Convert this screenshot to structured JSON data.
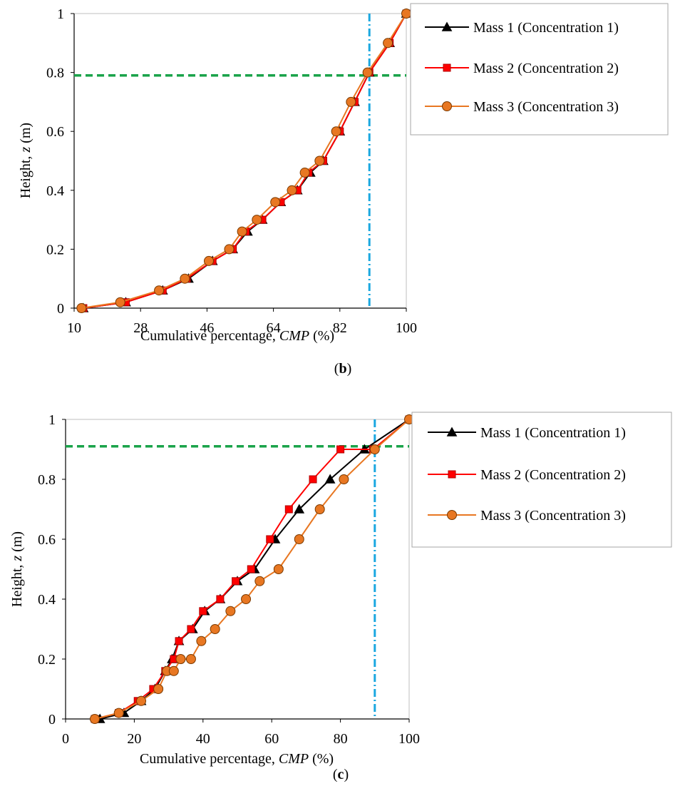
{
  "colors": {
    "series": [
      "#000000",
      "#ff0000",
      "#e87722"
    ],
    "marker_edges": [
      "#000000",
      "#b00000",
      "#7a3a00"
    ],
    "threshold_horizontal": "#1aa34a",
    "threshold_vertical": "#1aa7e0",
    "axis": "#000000",
    "plot_border": "#bfbfbf",
    "legend_border": "#a6a6a6"
  },
  "chart_data": [
    {
      "type": "line",
      "panel_label": "b",
      "xlabel_prefix": "Cumulative percentage, ",
      "xlabel_italic": "CMP",
      "xlabel_suffix": " (%)",
      "ylabel_prefix": "Height, ",
      "ylabel_italic": "z",
      "ylabel_suffix": " (m)",
      "xlim": [
        10,
        100
      ],
      "ylim": [
        0,
        1
      ],
      "x_ticks": [
        10,
        28,
        46,
        64,
        82,
        100
      ],
      "y_ticks": [
        0,
        0.2,
        0.4,
        0.6,
        0.8,
        1
      ],
      "x_tick_labels": [
        "10",
        "28",
        "46",
        "64",
        "82",
        "100"
      ],
      "y_tick_labels": [
        "0",
        "0.2",
        "0.4",
        "0.6",
        "0.8",
        "1"
      ],
      "grid": false,
      "legend_position": "top-right-outside",
      "threshold_y": 0.79,
      "threshold_x": 90,
      "series": [
        {
          "name": "Mass 1 (Concentration 1)",
          "marker": "triangle",
          "x": [
            12.5,
            24,
            34,
            41,
            47.5,
            53,
            57,
            61,
            66,
            70.5,
            74,
            77.5,
            82,
            86,
            90,
            95.5,
            100
          ],
          "y": [
            0,
            0.02,
            0.06,
            0.1,
            0.16,
            0.2,
            0.26,
            0.3,
            0.36,
            0.4,
            0.46,
            0.5,
            0.6,
            0.7,
            0.8,
            0.9,
            1
          ]
        },
        {
          "name": "Mass 2 (Concentration 2)",
          "marker": "square",
          "x": [
            12.5,
            24,
            34,
            40.5,
            47.5,
            53,
            56.5,
            61,
            66,
            70.5,
            73.5,
            77.5,
            82,
            86,
            90,
            95.5,
            100
          ],
          "y": [
            0,
            0.02,
            0.06,
            0.1,
            0.16,
            0.2,
            0.26,
            0.3,
            0.36,
            0.4,
            0.46,
            0.5,
            0.6,
            0.7,
            0.8,
            0.9,
            1
          ]
        },
        {
          "name": "Mass 3 (Concentration 3)",
          "marker": "circle",
          "x": [
            12,
            22.5,
            33,
            40,
            46.5,
            52,
            55.5,
            59.5,
            64.5,
            69,
            72.5,
            76.5,
            81,
            85,
            89.5,
            95,
            100
          ],
          "y": [
            0,
            0.02,
            0.06,
            0.1,
            0.16,
            0.2,
            0.26,
            0.3,
            0.36,
            0.4,
            0.46,
            0.5,
            0.6,
            0.7,
            0.8,
            0.9,
            1
          ]
        }
      ]
    },
    {
      "type": "line",
      "panel_label": "c",
      "xlabel_prefix": "Cumulative percentage, ",
      "xlabel_italic": "CMP",
      "xlabel_suffix": " (%)",
      "ylabel_prefix": "Height, ",
      "ylabel_italic": "z",
      "ylabel_suffix": " (m)",
      "xlim": [
        0,
        100
      ],
      "ylim": [
        0,
        1
      ],
      "x_ticks": [
        0,
        20,
        40,
        60,
        80,
        100
      ],
      "y_ticks": [
        0,
        0.2,
        0.4,
        0.6,
        0.8,
        1
      ],
      "x_tick_labels": [
        "0",
        "20",
        "40",
        "60",
        "80",
        "100"
      ],
      "y_tick_labels": [
        "0",
        "0.2",
        "0.4",
        "0.6",
        "0.8",
        "1"
      ],
      "grid": false,
      "legend_position": "top-right-outside",
      "threshold_y": 0.91,
      "threshold_x": 90,
      "series": [
        {
          "name": "Mass 1 (Concentration 1)",
          "marker": "triangle",
          "x": [
            10,
            17,
            22,
            26,
            29,
            31,
            33,
            37,
            40.5,
            45,
            50,
            55,
            61,
            68,
            77,
            87,
            100
          ],
          "y": [
            0,
            0.02,
            0.06,
            0.1,
            0.16,
            0.2,
            0.26,
            0.3,
            0.36,
            0.4,
            0.46,
            0.5,
            0.6,
            0.7,
            0.8,
            0.9,
            1
          ]
        },
        {
          "name": "Mass 2 (Concentration 2)",
          "marker": "square",
          "x": [
            8.5,
            15.5,
            21,
            25.5,
            29,
            31.5,
            33,
            36.5,
            40,
            45,
            49.5,
            54,
            59.5,
            65,
            72,
            80,
            89.5,
            100
          ],
          "y": [
            0,
            0.02,
            0.06,
            0.1,
            0.16,
            0.2,
            0.26,
            0.3,
            0.36,
            0.4,
            0.46,
            0.5,
            0.6,
            0.7,
            0.8,
            0.9,
            0.9,
            1
          ]
        },
        {
          "name": "Mass 3 (Concentration 3)",
          "marker": "circle",
          "x": [
            8.5,
            15.5,
            22,
            27,
            29.5,
            31.5,
            33.5,
            36.5,
            39.5,
            43.5,
            48,
            52.5,
            56.5,
            62,
            68,
            74,
            81,
            90,
            100
          ],
          "y": [
            0,
            0.02,
            0.06,
            0.1,
            0.16,
            0.16,
            0.2,
            0.2,
            0.26,
            0.3,
            0.36,
            0.4,
            0.46,
            0.5,
            0.6,
            0.7,
            0.8,
            0.9,
            1
          ]
        }
      ]
    }
  ]
}
